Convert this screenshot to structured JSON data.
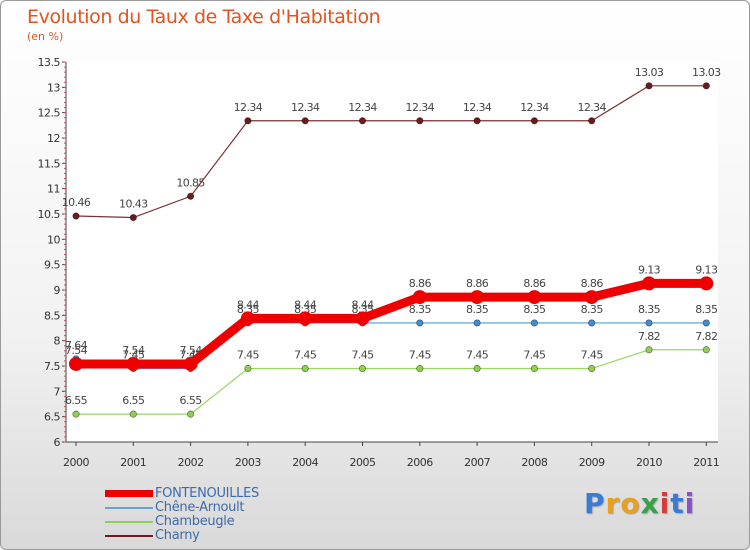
{
  "chart_data": {
    "type": "line",
    "title": "Evolution du Taux de Taxe d'Habitation",
    "unit_label": "(en %)",
    "xlabel": "",
    "ylabel": "(en %)",
    "ylim": [
      6,
      13.5
    ],
    "yticks": [
      6,
      6.5,
      7,
      7.5,
      8,
      8.5,
      9,
      9.5,
      10,
      10.5,
      11,
      11.5,
      12,
      12.5,
      13,
      13.5
    ],
    "categories": [
      "2000",
      "2001",
      "2002",
      "2003",
      "2004",
      "2005",
      "2006",
      "2007",
      "2008",
      "2009",
      "2010",
      "2011"
    ],
    "series": [
      {
        "name": "Charny",
        "color": "#6b1c1c",
        "values": [
          10.46,
          10.43,
          10.85,
          12.34,
          12.34,
          12.34,
          12.34,
          12.34,
          12.34,
          12.34,
          13.03,
          13.03
        ],
        "labels": [
          "10.46",
          "10.43",
          "10.85",
          "12.34",
          "12.34",
          "12.34",
          "12.34",
          "12.34",
          "12.34",
          "12.34",
          "13.03",
          "13.03"
        ]
      },
      {
        "name": "Chambeugle",
        "color": "#8fd14f",
        "values": [
          6.55,
          6.55,
          6.55,
          7.45,
          7.45,
          7.45,
          7.45,
          7.45,
          7.45,
          7.45,
          7.82,
          7.82
        ],
        "labels": [
          "6.55",
          "6.55",
          "6.55",
          "7.45",
          "7.45",
          "7.45",
          "7.45",
          "7.45",
          "7.45",
          "7.45",
          "7.82",
          "7.82"
        ]
      },
      {
        "name": "Chêne-Arnoult",
        "color": "#3d8fd1",
        "values": [
          7.64,
          7.45,
          7.45,
          8.35,
          8.35,
          8.35,
          8.35,
          8.35,
          8.35,
          8.35,
          8.35,
          8.35
        ],
        "labels": [
          "7.64",
          "7.45",
          "7.45",
          "8.35",
          "8.35",
          "8.35",
          "8.35",
          "8.35",
          "8.35",
          "8.35",
          "8.35",
          "8.35"
        ]
      },
      {
        "name": "FONTENOUILLES",
        "color": "#ee0000",
        "values": [
          7.54,
          7.54,
          7.54,
          8.44,
          8.44,
          8.44,
          8.86,
          8.86,
          8.86,
          8.86,
          9.13,
          9.13
        ],
        "labels": [
          "7.54",
          "7.54",
          "7.54",
          "8.44",
          "8.44",
          "8.44",
          "8.86",
          "8.86",
          "8.86",
          "8.86",
          "9.13",
          "9.13"
        ]
      }
    ]
  },
  "legend": {
    "items": [
      {
        "label": "FONTENOUILLES",
        "color": "#ee0000"
      },
      {
        "label": "Chêne-Arnoult",
        "color": "#6a9fd4"
      },
      {
        "label": "Chambeugle",
        "color": "#8fd14f"
      },
      {
        "label": "Charny",
        "color": "#6b1c1c"
      }
    ]
  },
  "logo": {
    "letters": [
      "P",
      "r",
      "o",
      "x",
      "i",
      "t",
      "i"
    ],
    "colors": [
      "#3a7bd5",
      "#e8a020",
      "#e8a020",
      "#3aa14a",
      "#d43c3c",
      "#3a7bd5",
      "#8a4fc9"
    ]
  }
}
